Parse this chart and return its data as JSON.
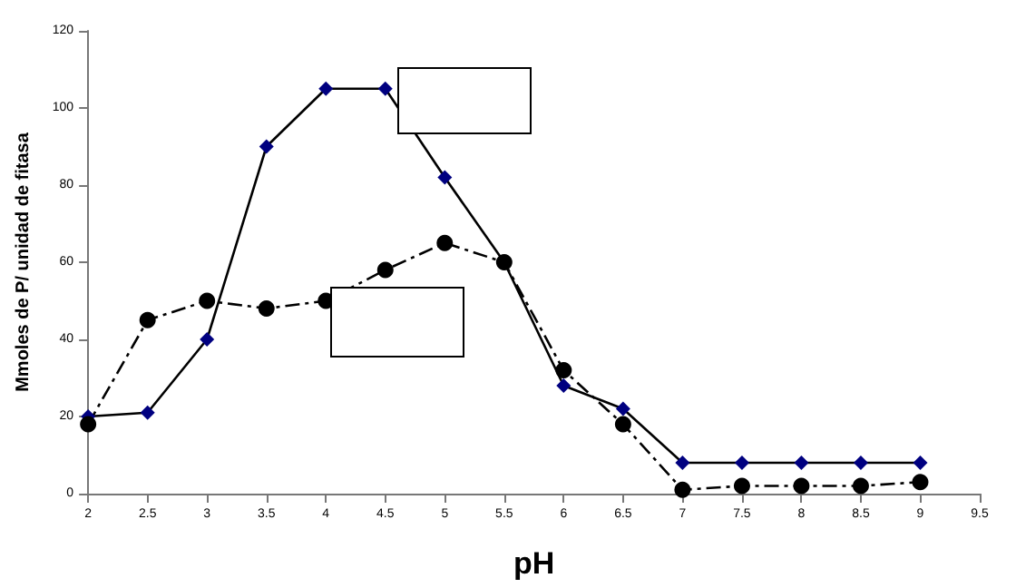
{
  "chart_data": {
    "type": "line",
    "xlabel": "pH",
    "ylabel": "Mmoles de P/ unidad de fitasa",
    "x": [
      2,
      2.5,
      3,
      3.5,
      4,
      4.5,
      5,
      5.5,
      6,
      6.5,
      7,
      7.5,
      8,
      8.5,
      9
    ],
    "series": [
      {
        "color": "#000080",
        "marker": "diamond",
        "line_style": "solid",
        "values": [
          20,
          21,
          40,
          90,
          105,
          105,
          82,
          60,
          28,
          22,
          8,
          8,
          8,
          8,
          8
        ]
      },
      {
        "color": "#000000",
        "marker": "circle",
        "line_style": "dashed",
        "values": [
          18,
          45,
          50,
          48,
          50,
          58,
          65,
          60,
          32,
          18,
          1,
          2,
          2,
          2,
          3
        ]
      }
    ],
    "xlim": [
      2,
      9.5
    ],
    "xticks": [
      2,
      2.5,
      3,
      3.5,
      4,
      4.5,
      5,
      5.5,
      6,
      6.5,
      7,
      7.5,
      8,
      8.5,
      9,
      9.5
    ],
    "ylim": [
      0,
      120
    ],
    "yticks": [
      0,
      20,
      40,
      60,
      80,
      100,
      120
    ],
    "grid": false
  }
}
